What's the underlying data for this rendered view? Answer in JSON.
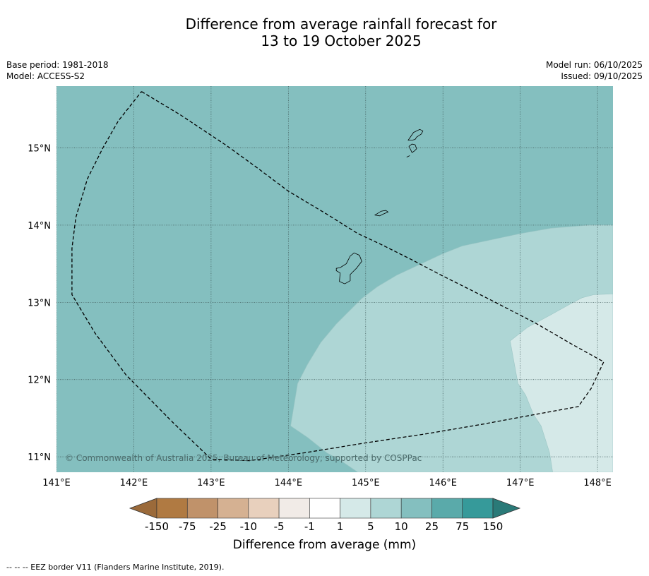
{
  "title_line1": "Difference from average rainfall forecast for",
  "title_line2": "13 to 19 October 2025",
  "meta": {
    "base_period": "Base period: 1981-2018",
    "model": "Model: ACCESS-S2",
    "model_run": "Model run: 06/10/2025",
    "issued": "Issued: 09/10/2025"
  },
  "copyright": "© Commonwealth of Australia 2025, Bureau of Meteorology, supported by COSPPac",
  "colorbar": {
    "title": "Difference from average (mm)",
    "ticks": [
      "-150",
      "-75",
      "-25",
      "-10",
      "-5",
      "-1",
      "1",
      "5",
      "10",
      "25",
      "75",
      "150"
    ],
    "colors": [
      "#9b6a3a",
      "#b07a42",
      "#c0926a",
      "#d5b192",
      "#e8d0bd",
      "#f1ebe7",
      "#ffffff",
      "#d5e9e8",
      "#aed6d5",
      "#84bfbf",
      "#5aaaaa",
      "#369a9a",
      "#2a7a78"
    ]
  },
  "footnote": "--  --  -- EEZ border V11 (Flanders Marine Institute, 2019).",
  "chart_data": {
    "type": "heatmap",
    "title": "Difference from average rainfall forecast for 13 to 19 October 2025",
    "xlabel": "",
    "ylabel": "",
    "xlim": [
      141.0,
      148.2
    ],
    "ylim": [
      10.8,
      15.8
    ],
    "x_ticks": [
      141,
      142,
      143,
      144,
      145,
      146,
      147,
      148
    ],
    "x_tick_labels": [
      "141°E",
      "142°E",
      "143°E",
      "144°E",
      "145°E",
      "146°E",
      "147°E",
      "148°E"
    ],
    "y_ticks": [
      11,
      12,
      13,
      14,
      15
    ],
    "y_tick_labels": [
      "11°N",
      "12°N",
      "13°N",
      "14°N",
      "15°N"
    ],
    "grid": true,
    "background_category": "10 to 25",
    "regions": [
      {
        "category": "5 to 10",
        "color": "#aed6d5",
        "polygon": [
          [
            148.2,
            14.0
          ],
          [
            147.9,
            14.0
          ],
          [
            147.4,
            13.96
          ],
          [
            147.0,
            13.89
          ],
          [
            146.25,
            13.73
          ],
          [
            146.0,
            13.63
          ],
          [
            145.4,
            13.35
          ],
          [
            145.15,
            13.2
          ],
          [
            144.95,
            13.05
          ],
          [
            144.62,
            12.72
          ],
          [
            144.42,
            12.48
          ],
          [
            144.25,
            12.2
          ],
          [
            144.12,
            11.95
          ],
          [
            144.03,
            11.4
          ],
          [
            144.25,
            11.25
          ],
          [
            144.5,
            11.05
          ],
          [
            144.65,
            10.97
          ],
          [
            144.9,
            10.8
          ],
          [
            148.2,
            10.8
          ]
        ]
      },
      {
        "category": "1 to 5",
        "color": "#d5e9e8",
        "polygon": [
          [
            148.2,
            13.11
          ],
          [
            147.95,
            13.1
          ],
          [
            147.8,
            13.06
          ],
          [
            147.65,
            12.98
          ],
          [
            147.4,
            12.84
          ],
          [
            147.1,
            12.68
          ],
          [
            146.87,
            12.5
          ],
          [
            146.97,
            11.95
          ],
          [
            147.07,
            11.8
          ],
          [
            147.17,
            11.55
          ],
          [
            147.27,
            11.4
          ],
          [
            147.38,
            11.05
          ],
          [
            147.42,
            10.8
          ],
          [
            148.2,
            10.8
          ]
        ]
      }
    ],
    "islands": [
      [
        [
          145.55,
          15.1
        ],
        [
          145.62,
          15.2
        ],
        [
          145.7,
          15.24
        ],
        [
          145.74,
          15.22
        ],
        [
          145.72,
          15.18
        ],
        [
          145.66,
          15.14
        ],
        [
          145.64,
          15.11
        ],
        [
          145.6,
          15.1
        ]
      ],
      [
        [
          145.56,
          15.02
        ],
        [
          145.6,
          15.05
        ],
        [
          145.64,
          15.04
        ],
        [
          145.66,
          14.99
        ],
        [
          145.63,
          14.96
        ],
        [
          145.6,
          14.94
        ],
        [
          145.58,
          14.98
        ]
      ],
      [
        [
          145.53,
          14.88
        ],
        [
          145.57,
          14.9
        ]
      ],
      [
        [
          145.12,
          14.13
        ],
        [
          145.2,
          14.18
        ],
        [
          145.26,
          14.19
        ],
        [
          145.29,
          14.17
        ],
        [
          145.22,
          14.14
        ],
        [
          145.18,
          14.12
        ]
      ],
      [
        [
          144.62,
          13.44
        ],
        [
          144.67,
          13.45
        ],
        [
          144.75,
          13.5
        ],
        [
          144.8,
          13.6
        ],
        [
          144.85,
          13.64
        ],
        [
          144.92,
          13.61
        ],
        [
          144.95,
          13.53
        ],
        [
          144.88,
          13.44
        ],
        [
          144.8,
          13.36
        ],
        [
          144.8,
          13.28
        ],
        [
          144.73,
          13.24
        ],
        [
          144.66,
          13.27
        ],
        [
          144.67,
          13.38
        ],
        [
          144.62,
          13.41
        ]
      ]
    ],
    "eez_border": [
      [
        142.1,
        15.73
      ],
      [
        142.6,
        15.43
      ],
      [
        143.2,
        15.03
      ],
      [
        143.6,
        14.74
      ],
      [
        144.0,
        14.44
      ],
      [
        144.5,
        14.14
      ],
      [
        144.9,
        13.89
      ],
      [
        145.2,
        13.75
      ],
      [
        145.6,
        13.55
      ],
      [
        146.0,
        13.34
      ],
      [
        146.6,
        13.04
      ],
      [
        147.2,
        12.73
      ],
      [
        147.7,
        12.44
      ],
      [
        148.08,
        12.23
      ],
      [
        147.92,
        11.89
      ],
      [
        147.75,
        11.65
      ],
      [
        147.2,
        11.55
      ],
      [
        146.5,
        11.42
      ],
      [
        145.8,
        11.3
      ],
      [
        145.0,
        11.18
      ],
      [
        144.2,
        11.05
      ],
      [
        143.5,
        10.95
      ],
      [
        143.0,
        10.97
      ],
      [
        142.5,
        11.45
      ],
      [
        141.9,
        12.06
      ],
      [
        141.5,
        12.6
      ],
      [
        141.2,
        13.1
      ],
      [
        141.2,
        13.7
      ],
      [
        141.25,
        14.1
      ],
      [
        141.4,
        14.6
      ],
      [
        141.6,
        15.0
      ],
      [
        141.8,
        15.35
      ],
      [
        142.1,
        15.73
      ]
    ]
  }
}
